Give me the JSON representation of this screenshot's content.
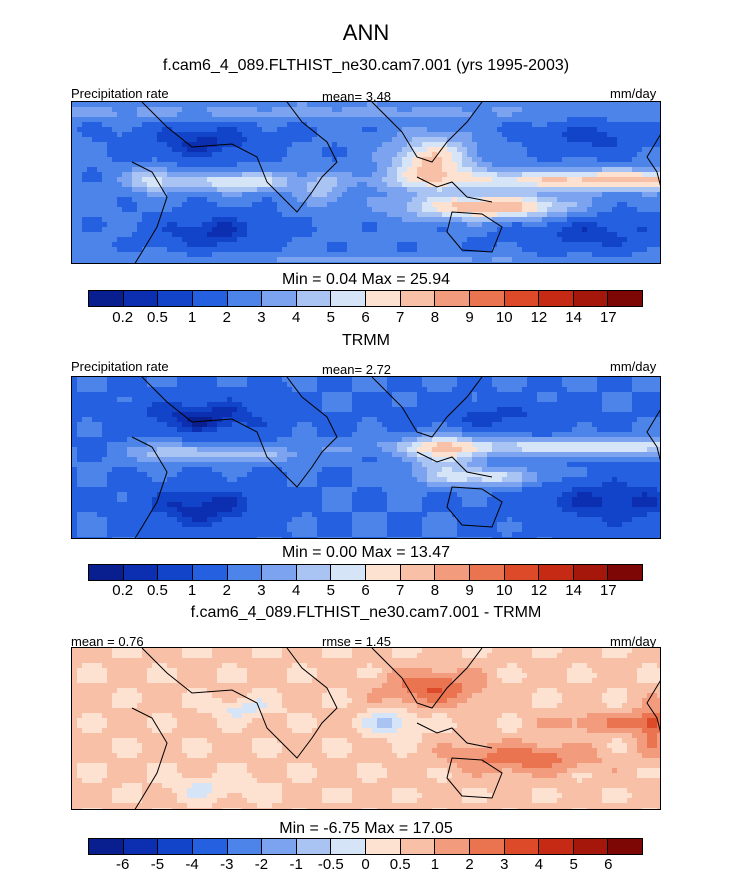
{
  "title": "ANN",
  "colors": {
    "precip_palette": [
      "#0a1f8f",
      "#0b2fb0",
      "#1144c8",
      "#2460e0",
      "#4c84ea",
      "#7ca3ef",
      "#a9c3f3",
      "#d6e4f8",
      "#fde2d2",
      "#f8c0a6",
      "#f39c7d",
      "#ea7350",
      "#dc4a2a",
      "#c62a14",
      "#a5160b",
      "#7d0705"
    ],
    "diff_palette": [
      "#0a1f8f",
      "#0b2fb0",
      "#1144c8",
      "#2460e0",
      "#4c84ea",
      "#7ca3ef",
      "#a9c3f3",
      "#d6e4f8",
      "#fde2d2",
      "#f8c0a6",
      "#f39c7d",
      "#ea7350",
      "#dc4a2a",
      "#c62a14",
      "#a5160b",
      "#7d0705"
    ]
  },
  "panels": [
    {
      "title": "f.cam6_4_089.FLTHIST_ne30.cam7.001 (yrs 1995-2003)",
      "left_label": "Precipitation rate",
      "center_label": "mean=   3.48",
      "right_label": "mm/day",
      "minmax": "Min =   0.04 Max =  25.94",
      "ticks": [
        "0.2",
        "0.5",
        "1",
        "2",
        "3",
        "4",
        "5",
        "6",
        "7",
        "8",
        "9",
        "10",
        "12",
        "14",
        "17"
      ],
      "field": "model"
    },
    {
      "title": "TRMM",
      "left_label": "Precipitation rate",
      "center_label": "mean=   2.72",
      "right_label": "mm/day",
      "minmax": "Min =   0.00 Max =  13.47",
      "ticks": [
        "0.2",
        "0.5",
        "1",
        "2",
        "3",
        "4",
        "5",
        "6",
        "7",
        "8",
        "9",
        "10",
        "12",
        "14",
        "17"
      ],
      "field": "obs"
    },
    {
      "title": "f.cam6_4_089.FLTHIST_ne30.cam7.001 - TRMM",
      "left_label": "mean =   0.76",
      "center_label": "rmse =   1.45",
      "right_label": "mm/day",
      "minmax": "Min =  -6.75 Max =  17.05",
      "ticks": [
        "-6",
        "-5",
        "-4",
        "-3",
        "-2",
        "-1",
        "-0.5",
        "0",
        "0.5",
        "1",
        "2",
        "3",
        "4",
        "5",
        "6"
      ],
      "field": "diff"
    }
  ]
}
